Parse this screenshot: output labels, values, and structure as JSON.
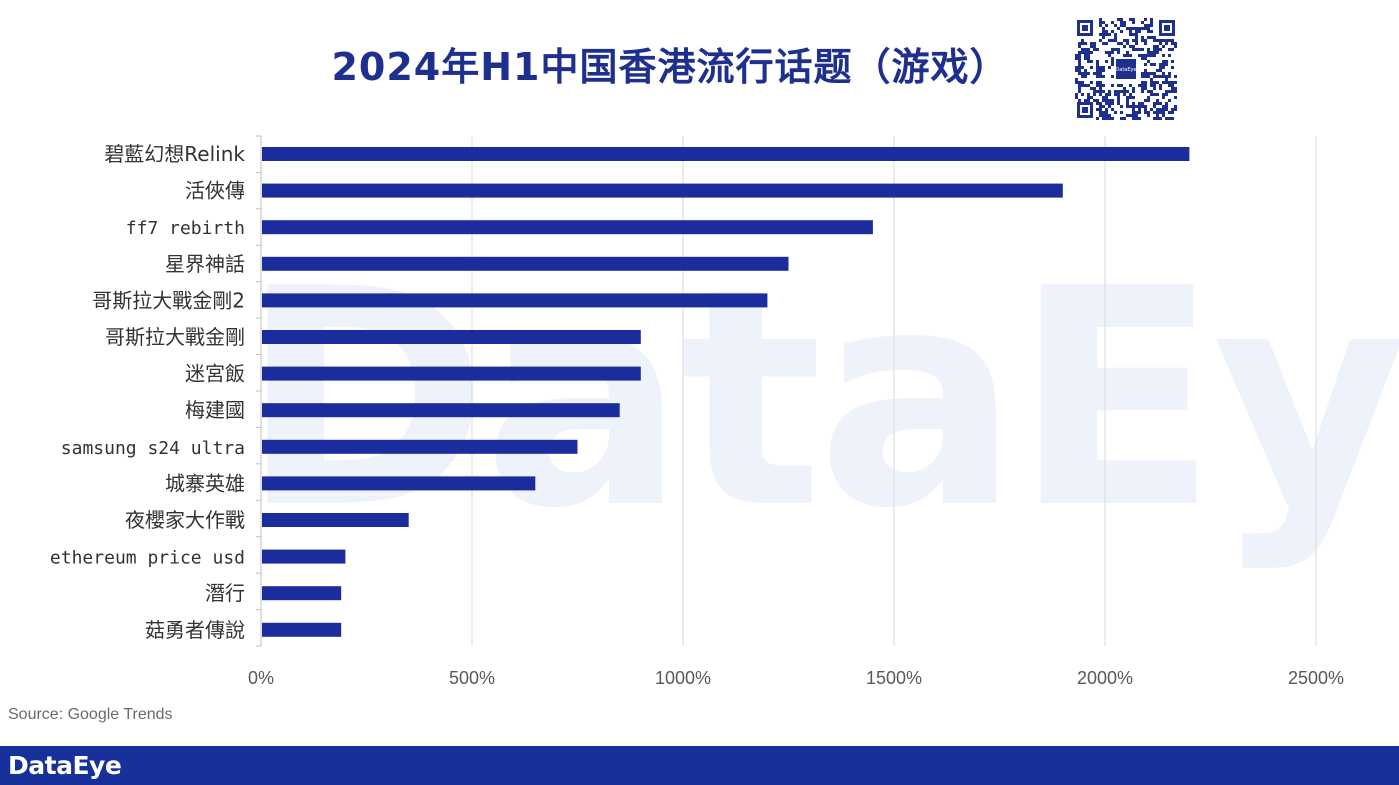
{
  "header": {
    "title": "2024年H1中国香港流行话题（游戏）"
  },
  "watermark": {
    "text": "DataEye"
  },
  "source": {
    "text": "Source: Google Trends"
  },
  "footer": {
    "brand": "DataEye",
    "background_color": "#17309a"
  },
  "qr_icon": {
    "center_label": "DataEye"
  },
  "chart_data": {
    "type": "bar",
    "orientation": "horizontal",
    "title": "2024年H1中国香港流行话题（游戏）",
    "categories": [
      "碧藍幻想Relink",
      "活俠傳",
      "ff7 rebirth",
      "星界神話",
      "哥斯拉大戰金剛2",
      "哥斯拉大戰金剛",
      "迷宮飯",
      "梅建國",
      "samsung s24 ultra",
      "城寨英雄",
      "夜櫻家大作戰",
      "ethereum price usd",
      "潛行",
      "菇勇者傳說"
    ],
    "values": [
      2200,
      1900,
      1450,
      1250,
      1200,
      900,
      900,
      850,
      750,
      650,
      350,
      200,
      190,
      190
    ],
    "unit": "%",
    "xlim": [
      0,
      2500
    ],
    "xticks": [
      "0%",
      "500%",
      "1000%",
      "1500%",
      "2000%",
      "2500%"
    ],
    "xtick_values": [
      0,
      500,
      1000,
      1500,
      2000,
      2500
    ],
    "grid": true,
    "bar_color": "#1b2d9c",
    "grid_color": "#d9d9d9",
    "xlabel": "",
    "ylabel": ""
  }
}
